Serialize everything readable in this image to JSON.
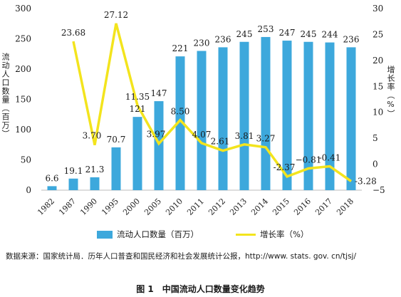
{
  "chart_data": {
    "type": "bar",
    "categories": [
      "1982",
      "1987",
      "1990",
      "1995",
      "2000",
      "2005",
      "2010",
      "2011",
      "2012",
      "2013",
      "2014",
      "2015",
      "2016",
      "2017",
      "2018"
    ],
    "series": [
      {
        "name": "流动人口数量（百万）",
        "kind": "bar",
        "axis": "left",
        "color": "#3da8dc",
        "values": [
          6.6,
          19.1,
          21.3,
          70.7,
          121,
          147,
          221,
          230,
          236,
          245,
          253,
          247,
          245,
          244,
          236
        ],
        "labels": [
          "6.6",
          "19.1",
          "21.3",
          "70.7",
          "121",
          "147",
          "221",
          "230",
          "236",
          "245",
          "253",
          "247",
          "245",
          "244",
          "236"
        ]
      },
      {
        "name": "增长率（%）",
        "kind": "line",
        "axis": "right",
        "color": "#f3e41d",
        "values": [
          null,
          23.68,
          3.7,
          27.12,
          11.35,
          3.97,
          8.5,
          4.07,
          2.61,
          3.81,
          3.27,
          -2.37,
          -0.81,
          -0.41,
          -3.28
        ],
        "labels": [
          null,
          "23.68",
          "3.70",
          "27.12",
          "11.35",
          "3.97",
          "8.50",
          "4.07",
          "2.61",
          "3.81",
          "3.27",
          "-2.37",
          "−0.81",
          "-0.41",
          "-3.28"
        ]
      }
    ],
    "ylabel": "流动人口数量（百万）",
    "y2label": "增长率（%）",
    "ylim": [
      0,
      300
    ],
    "y2lim": [
      -5,
      30
    ],
    "yticks": [
      "0",
      "50",
      "100",
      "150",
      "200",
      "250",
      "300"
    ],
    "y2ticks": [
      "−5",
      "0",
      "5",
      "10",
      "15",
      "20",
      "25",
      "30"
    ],
    "grid": false,
    "legend_position": "bottom"
  },
  "source_text": "数据来源：国家统计局．历年人口普查和国民经济和社会发展统计公报，http://www. stats. gov. cn/tjsj/",
  "caption": "图 1　中国流动人口数量变化趋势",
  "colors": {
    "bar": "#3da8dc",
    "line": "#f3e41d"
  }
}
